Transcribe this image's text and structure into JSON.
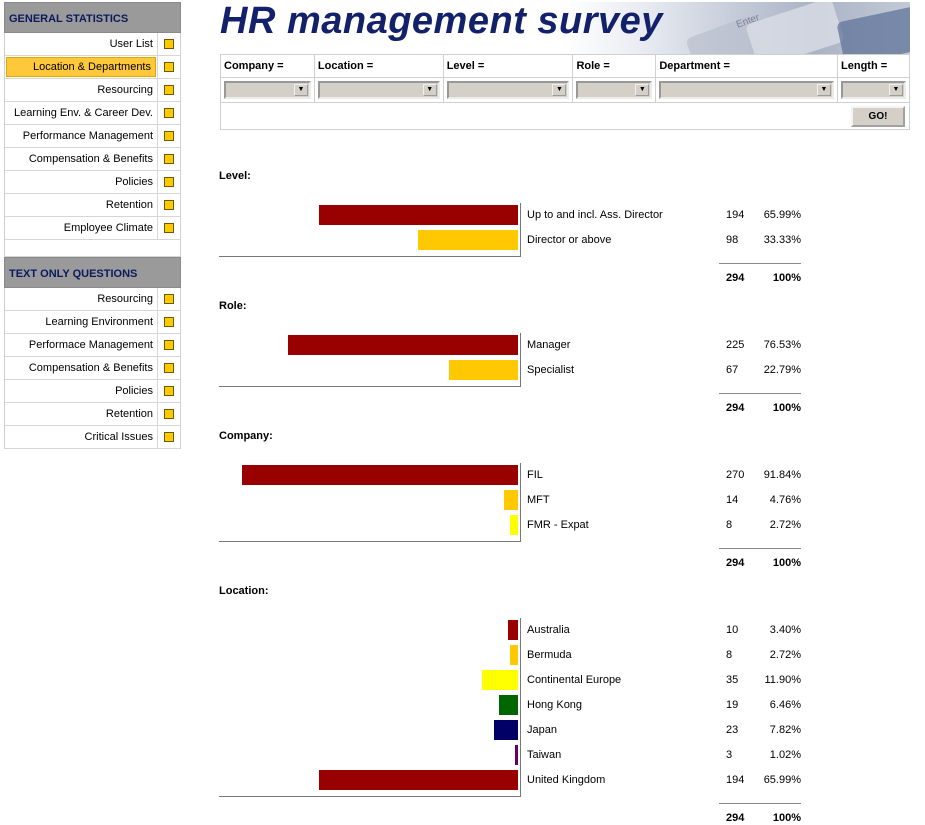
{
  "colors": {
    "accent": "#ffc800",
    "header_gray": "#9a9a9a",
    "title_navy": "#13216b"
  },
  "sidebar": {
    "general_header": "GENERAL STATISTICS",
    "general_items": [
      {
        "label": "User List"
      },
      {
        "label": "Location & Departments",
        "active": true
      },
      {
        "label": "Resourcing"
      },
      {
        "label": "Learning Env. & Career Dev."
      },
      {
        "label": "Performance Management"
      },
      {
        "label": "Compensation & Benefits"
      },
      {
        "label": "Policies"
      },
      {
        "label": "Retention"
      },
      {
        "label": "Employee Climate"
      }
    ],
    "text_header": "TEXT ONLY QUESTIONS",
    "text_items": [
      {
        "label": "Resourcing"
      },
      {
        "label": "Learning Environment"
      },
      {
        "label": "Performace Management"
      },
      {
        "label": "Compensation & Benefits"
      },
      {
        "label": "Policies"
      },
      {
        "label": "Retention"
      },
      {
        "label": "Critical Issues"
      }
    ]
  },
  "banner": {
    "title": "HR management survey",
    "key_text": "Enter"
  },
  "filters": {
    "columns": [
      "Company =",
      "Location =",
      "Level =",
      "Role =",
      "Department =",
      "Length ="
    ],
    "go_label": "GO!"
  },
  "chart_data": [
    {
      "type": "bar",
      "title": "Level:",
      "categories": [
        "Up to and incl. Ass. Director",
        "Director or above"
      ],
      "counts": [
        194,
        98
      ],
      "percents": [
        "65.99%",
        "33.33%"
      ],
      "colors": [
        "#990000",
        "#ffc800"
      ],
      "total_count": "294",
      "total_pct": "100%"
    },
    {
      "type": "bar",
      "title": "Role:",
      "categories": [
        "Manager",
        "Specialist"
      ],
      "counts": [
        225,
        67
      ],
      "percents": [
        "76.53%",
        "22.79%"
      ],
      "colors": [
        "#990000",
        "#ffc800"
      ],
      "total_count": "294",
      "total_pct": "100%"
    },
    {
      "type": "bar",
      "title": "Company:",
      "categories": [
        "FIL",
        "MFT",
        "FMR - Expat"
      ],
      "counts": [
        270,
        14,
        8
      ],
      "percents": [
        "91.84%",
        "4.76%",
        "2.72%"
      ],
      "colors": [
        "#990000",
        "#ffc800",
        "#ffff00"
      ],
      "total_count": "294",
      "total_pct": "100%"
    },
    {
      "type": "bar",
      "title": "Location:",
      "categories": [
        "Australia",
        "Bermuda",
        "Continental Europe",
        "Hong Kong",
        "Japan",
        "Taiwan",
        "United Kingdom"
      ],
      "counts": [
        10,
        8,
        35,
        19,
        23,
        3,
        194
      ],
      "percents": [
        "3.40%",
        "2.72%",
        "11.90%",
        "6.46%",
        "7.82%",
        "1.02%",
        "65.99%"
      ],
      "colors": [
        "#990000",
        "#ffc800",
        "#ffff00",
        "#006600",
        "#000066",
        "#660066",
        "#990000"
      ],
      "total_count": "294",
      "total_pct": "100%"
    }
  ]
}
